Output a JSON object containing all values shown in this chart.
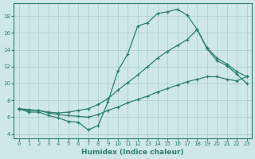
{
  "xlabel": "Humidex (Indice chaleur)",
  "bg_color": "#cee8e8",
  "line_color": "#2e7d6e",
  "grid_color": "#b0d0d0",
  "xlim": [
    -0.5,
    23.5
  ],
  "ylim": [
    3.5,
    19.5
  ],
  "xticks": [
    0,
    1,
    2,
    3,
    4,
    5,
    6,
    7,
    8,
    9,
    10,
    11,
    12,
    13,
    14,
    15,
    16,
    17,
    18,
    19,
    20,
    21,
    22,
    23
  ],
  "yticks": [
    4,
    6,
    8,
    10,
    12,
    14,
    16,
    18
  ],
  "line1_x": [
    0,
    1,
    2,
    3,
    4,
    5,
    6,
    7,
    8,
    9,
    10,
    11,
    12,
    13,
    14,
    15,
    16,
    17,
    18,
    19,
    20,
    21,
    22,
    23
  ],
  "line1_y": [
    7.0,
    6.6,
    6.6,
    6.2,
    5.9,
    5.5,
    5.4,
    4.5,
    5.0,
    7.8,
    11.5,
    13.5,
    16.8,
    17.2,
    18.3,
    18.5,
    18.8,
    18.1,
    16.4,
    14.1,
    12.7,
    12.1,
    11.1,
    10.0
  ],
  "line2_x": [
    0,
    1,
    2,
    3,
    4,
    5,
    6,
    7,
    8,
    9,
    10,
    11,
    12,
    13,
    14,
    15,
    16,
    17,
    18,
    19,
    20,
    21,
    22,
    23
  ],
  "line2_y": [
    7.0,
    6.9,
    6.8,
    6.6,
    6.5,
    6.6,
    6.8,
    7.0,
    7.5,
    8.2,
    9.2,
    10.1,
    11.0,
    12.0,
    13.0,
    13.8,
    14.5,
    15.2,
    16.4,
    14.2,
    13.0,
    12.3,
    11.4,
    10.8
  ],
  "line3_x": [
    0,
    1,
    2,
    3,
    4,
    5,
    6,
    7,
    8,
    9,
    10,
    11,
    12,
    13,
    14,
    15,
    16,
    17,
    18,
    19,
    20,
    21,
    22,
    23
  ],
  "line3_y": [
    7.0,
    6.8,
    6.8,
    6.5,
    6.3,
    6.2,
    6.1,
    6.0,
    6.3,
    6.8,
    7.2,
    7.7,
    8.1,
    8.5,
    9.0,
    9.4,
    9.8,
    10.2,
    10.5,
    10.8,
    10.8,
    10.5,
    10.3,
    10.8
  ]
}
